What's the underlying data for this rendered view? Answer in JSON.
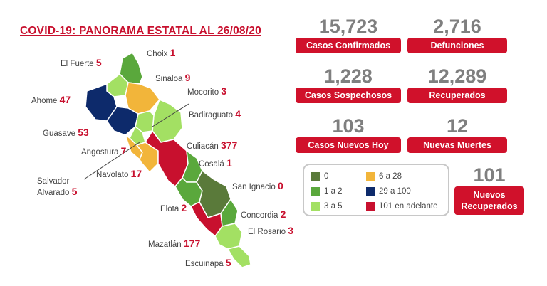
{
  "title": "COVID-19: PANORAMA ESTATAL AL 26/08/20",
  "colors": {
    "zero": "#5a7a3a",
    "one_two": "#5aa83c",
    "three_five": "#a3e063",
    "six_28": "#f2b53a",
    "t29_100": "#0d2a6b",
    "t101_plus": "#c8102e",
    "label_bg": "#d0112b"
  },
  "stats": {
    "confirmados": {
      "value": "15,723",
      "label": "Casos Confirmados"
    },
    "defunciones": {
      "value": "2,716",
      "label": "Defunciones"
    },
    "sospechosos": {
      "value": "1,228",
      "label": "Casos Sospechosos"
    },
    "recuperados": {
      "value": "12,289",
      "label": "Recuperados"
    },
    "nuevos_hoy": {
      "value": "103",
      "label": "Casos Nuevos Hoy"
    },
    "nuevas_muertes": {
      "value": "12",
      "label": "Nuevas Muertes"
    },
    "nuevos_recuperados": {
      "value": "101",
      "label_line1": "Nuevos",
      "label_line2": "Recuperados"
    }
  },
  "legend": [
    {
      "label": "0",
      "color": "#5a7a3a"
    },
    {
      "label": "1 a 2",
      "color": "#5aa83c"
    },
    {
      "label": "3 a 5",
      "color": "#a3e063"
    },
    {
      "label": "6 a 28",
      "color": "#f2b53a"
    },
    {
      "label": "29 a 100",
      "color": "#0d2a6b"
    },
    {
      "label": "101 en adelante",
      "color": "#c8102e"
    }
  ],
  "municipios": {
    "choix": {
      "name": "Choix",
      "value": "1"
    },
    "el_fuerte": {
      "name": "El Fuerte",
      "value": "5"
    },
    "sinaloa": {
      "name": "Sinaloa",
      "value": "9"
    },
    "ahome": {
      "name": "Ahome",
      "value": "47"
    },
    "mocorito": {
      "name": "Mocorito",
      "value": "3"
    },
    "badiraguato": {
      "name": "Badiraguato",
      "value": "4"
    },
    "guasave": {
      "name": "Guasave",
      "value": "53"
    },
    "angostura": {
      "name": "Angostura",
      "value": "7"
    },
    "culiacan": {
      "name": "Culiacán",
      "value": "377"
    },
    "cosala": {
      "name": "Cosalá",
      "value": "1"
    },
    "salvador_alvarado": {
      "name_line1": "Salvador",
      "name_line2": "Alvarado",
      "value": "5"
    },
    "navolato": {
      "name": "Navolato",
      "value": "17"
    },
    "san_ignacio": {
      "name": "San Ignacio",
      "value": "0"
    },
    "elota": {
      "name": "Elota",
      "value": "2"
    },
    "concordia": {
      "name": "Concordia",
      "value": "2"
    },
    "el_rosario": {
      "name": "El Rosario",
      "value": "3"
    },
    "mazatlan": {
      "name": "Mazatlán",
      "value": "177"
    },
    "escuinapa": {
      "name": "Escuinapa",
      "value": "5"
    }
  }
}
